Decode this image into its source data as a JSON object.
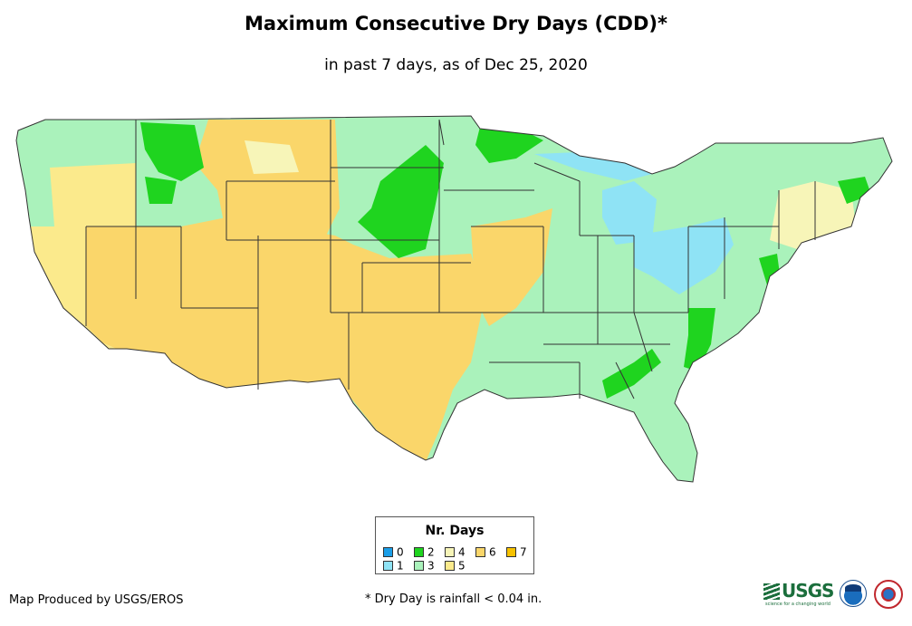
{
  "title": "Maximum Consecutive Dry Days (CDD)*",
  "subtitle": "in past 7 days, as of Dec 25, 2020",
  "legend": {
    "title": "Nr. Days",
    "items": [
      {
        "label": "0",
        "color": "#1a9ee8"
      },
      {
        "label": "1",
        "color": "#8fe3f5"
      },
      {
        "label": "2",
        "color": "#1fd41f"
      },
      {
        "label": "3",
        "color": "#aaf2bb"
      },
      {
        "label": "4",
        "color": "#f7f5b8"
      },
      {
        "label": "5",
        "color": "#fbea8c"
      },
      {
        "label": "6",
        "color": "#fad66a"
      },
      {
        "label": "7",
        "color": "#f7c200"
      }
    ]
  },
  "map": {
    "region": "contiguous-us",
    "colors": {
      "days_1": "#8fe3f5",
      "days_2": "#1fd41f",
      "days_3": "#aaf2bb",
      "days_4": "#f7f5b8",
      "days_5": "#fbea8c",
      "days_6": "#fad66a",
      "border": "#333333"
    }
  },
  "footer": {
    "credit": "Map Produced by USGS/EROS",
    "note": "* Dry Day is rainfall < 0.04 in."
  },
  "logos": {
    "usgs_text": "USGS",
    "usgs_tagline": "science for a changing world",
    "icons": [
      "usgs-logo",
      "noaa-logo",
      "nws-logo"
    ]
  }
}
